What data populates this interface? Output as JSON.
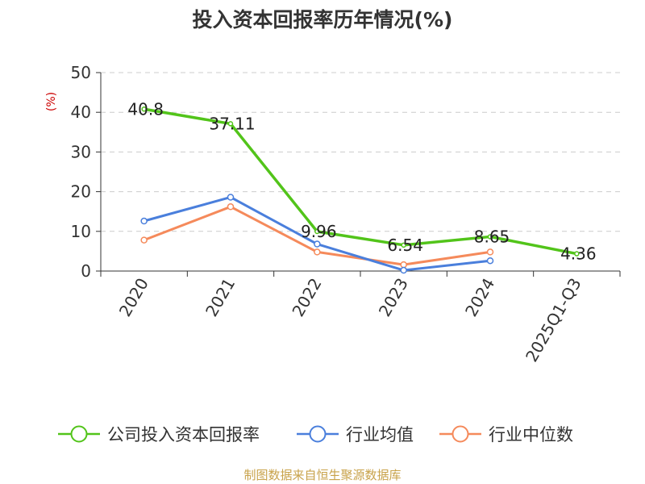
{
  "chart_data": {
    "type": "line",
    "title": "投入资本回报率历年情况(%)",
    "ylabel": "(%)",
    "xlabel": "",
    "ylim": [
      0,
      50
    ],
    "yticks": [
      0,
      10,
      20,
      30,
      40,
      50
    ],
    "categories": [
      "2020",
      "2021",
      "2022",
      "2023",
      "2024",
      "2025Q1-Q3"
    ],
    "grid": "horizontal dashed",
    "legend_position": "bottom",
    "series": [
      {
        "name": "公司投入资本回报率",
        "color": "#52c41a",
        "values": [
          40.8,
          37.11,
          9.96,
          6.54,
          8.65,
          4.36
        ],
        "labels": [
          "40.8",
          "37.11",
          "9.96",
          "6.54",
          "8.65",
          "4.36"
        ]
      },
      {
        "name": "行业均值",
        "color": "#4a7fdc",
        "values": [
          12.6,
          18.6,
          6.8,
          0.2,
          2.6,
          null
        ]
      },
      {
        "name": "行业中位数",
        "color": "#f58a5b",
        "values": [
          7.8,
          16.2,
          4.8,
          1.6,
          4.8,
          null
        ]
      }
    ]
  },
  "source": "制图数据来自恒生聚源数据库"
}
